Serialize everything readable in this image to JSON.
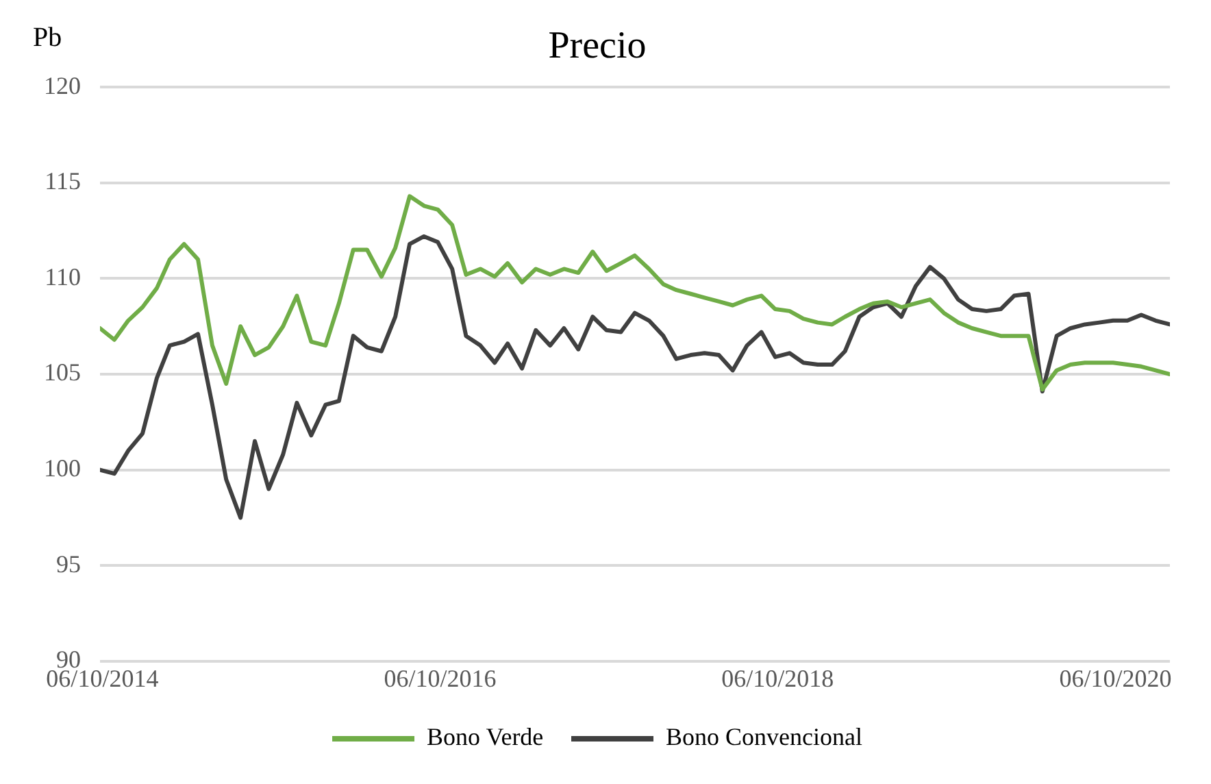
{
  "chart_data": {
    "type": "line",
    "title": "Precio",
    "ylabel": "Pb",
    "x": [
      "2014-10",
      "2014-11",
      "2014-12",
      "2015-01",
      "2015-02",
      "2015-03",
      "2015-04",
      "2015-05",
      "2015-06",
      "2015-07",
      "2015-08",
      "2015-09",
      "2015-10",
      "2015-11",
      "2015-12",
      "2016-01",
      "2016-02",
      "2016-03",
      "2016-04",
      "2016-05",
      "2016-06",
      "2016-07",
      "2016-08",
      "2016-09",
      "2016-10",
      "2016-11",
      "2016-12",
      "2017-01",
      "2017-02",
      "2017-03",
      "2017-04",
      "2017-05",
      "2017-06",
      "2017-07",
      "2017-08",
      "2017-09",
      "2017-10",
      "2017-11",
      "2017-12",
      "2018-01",
      "2018-02",
      "2018-03",
      "2018-04",
      "2018-05",
      "2018-06",
      "2018-07",
      "2018-08",
      "2018-09",
      "2018-10",
      "2018-11",
      "2018-12",
      "2019-01",
      "2019-02",
      "2019-03",
      "2019-04",
      "2019-05",
      "2019-06",
      "2019-07",
      "2019-08",
      "2019-09",
      "2019-10",
      "2019-11",
      "2019-12",
      "2020-01",
      "2020-02",
      "2020-03",
      "2020-04",
      "2020-05",
      "2020-06",
      "2020-07",
      "2020-08",
      "2020-09",
      "2020-10",
      "2020-11",
      "2020-12",
      "2021-01",
      "2021-02"
    ],
    "series": [
      {
        "name": "Bono Verde",
        "color": "#70ad47",
        "values": [
          107.4,
          106.8,
          107.8,
          108.5,
          109.5,
          111.0,
          111.8,
          111.0,
          106.5,
          104.5,
          107.5,
          106.0,
          106.4,
          107.5,
          109.1,
          106.7,
          106.5,
          108.7,
          111.5,
          111.5,
          110.1,
          111.6,
          114.3,
          113.8,
          113.6,
          112.8,
          110.2,
          110.5,
          110.1,
          110.8,
          109.8,
          110.5,
          110.2,
          110.5,
          110.3,
          111.4,
          110.4,
          110.8,
          111.2,
          110.5,
          109.7,
          109.4,
          109.2,
          109.0,
          108.8,
          108.6,
          108.9,
          109.1,
          108.4,
          108.3,
          107.9,
          107.7,
          107.6,
          108.0,
          108.4,
          108.7,
          108.8,
          108.5,
          108.7,
          108.9,
          108.2,
          107.7,
          107.4,
          107.2,
          107.0,
          107.0,
          107.0,
          104.2,
          105.2,
          105.5,
          105.6,
          105.6,
          105.6,
          105.5,
          105.4,
          105.2,
          105.0
        ]
      },
      {
        "name": "Bono Convencional",
        "color": "#404040",
        "values": [
          100.0,
          99.8,
          101.0,
          101.9,
          104.8,
          106.5,
          106.7,
          107.1,
          103.4,
          99.5,
          97.5,
          101.5,
          99.0,
          100.8,
          103.5,
          101.8,
          103.4,
          103.6,
          107.0,
          106.4,
          106.2,
          108.0,
          111.8,
          112.2,
          111.9,
          110.5,
          107.0,
          106.5,
          105.6,
          106.6,
          105.3,
          107.3,
          106.5,
          107.4,
          106.3,
          108.0,
          107.3,
          107.2,
          108.2,
          107.8,
          107.0,
          105.8,
          106.0,
          106.1,
          106.0,
          105.2,
          106.5,
          107.2,
          105.9,
          106.1,
          105.6,
          105.5,
          105.5,
          106.2,
          108.0,
          108.5,
          108.7,
          108.0,
          109.6,
          110.6,
          110.0,
          108.9,
          108.4,
          108.3,
          108.4,
          109.1,
          109.2,
          104.1,
          107.0,
          107.4,
          107.6,
          107.7,
          107.8,
          107.8,
          108.1,
          107.8,
          107.6
        ]
      }
    ],
    "xlim": [
      "2014-10-01",
      "2021-02-01"
    ],
    "xticks": [
      {
        "value": "2014-10-06",
        "label": "06/10/2014"
      },
      {
        "value": "2016-10-06",
        "label": "06/10/2016"
      },
      {
        "value": "2018-10-06",
        "label": "06/10/2018"
      },
      {
        "value": "2020-10-06",
        "label": "06/10/2020"
      }
    ],
    "ylim": [
      90,
      120
    ],
    "yticks": [
      90,
      95,
      100,
      105,
      110,
      115,
      120
    ],
    "grid": "y",
    "legend": "bottom",
    "marker": "none",
    "line_style": "solid"
  }
}
